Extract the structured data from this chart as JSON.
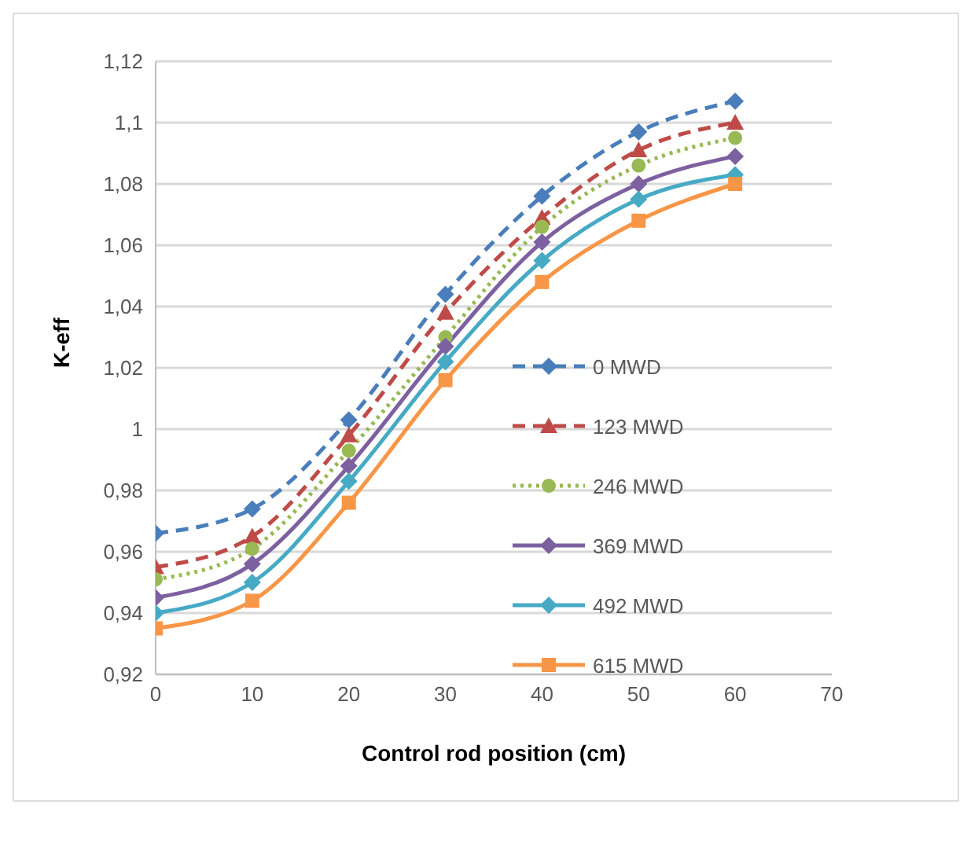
{
  "chart_data": {
    "type": "line",
    "xlabel": "Control rod position (cm)",
    "ylabel": "K-eff",
    "x": [
      0,
      10,
      20,
      30,
      40,
      50,
      60
    ],
    "xlim": [
      0,
      70
    ],
    "xticks": [
      0,
      10,
      20,
      30,
      40,
      50,
      60,
      70
    ],
    "ylim": [
      0.92,
      1.12
    ],
    "yticks": [
      {
        "value": 0.92,
        "label": "0,92"
      },
      {
        "value": 0.94,
        "label": "0,94"
      },
      {
        "value": 0.96,
        "label": "0,96"
      },
      {
        "value": 0.98,
        "label": "0,98"
      },
      1,
      {
        "value": 1.02,
        "label": "1,02"
      },
      {
        "value": 1.04,
        "label": "1,04"
      },
      {
        "value": 1.06,
        "label": "1,06"
      },
      {
        "value": 1.08,
        "label": "1,08"
      },
      {
        "value": 1.1,
        "label": "1,1"
      },
      {
        "value": 1.12,
        "label": "1,12"
      }
    ],
    "grid": "y",
    "legend": "right",
    "series": [
      {
        "name": "0 MWD",
        "color": "#4a7ebb",
        "line_style": "dashed",
        "marker": "diamond",
        "values": [
          0.966,
          0.974,
          1.003,
          1.044,
          1.076,
          1.097,
          1.107
        ]
      },
      {
        "name": "123 MWD",
        "color": "#be4b48",
        "line_style": "dashed",
        "marker": "triangle",
        "values": [
          0.955,
          0.965,
          0.998,
          1.038,
          1.069,
          1.091,
          1.1
        ]
      },
      {
        "name": "246 MWD",
        "color": "#98b954",
        "line_style": "dotted",
        "marker": "circle",
        "values": [
          0.951,
          0.961,
          0.993,
          1.03,
          1.066,
          1.086,
          1.095
        ]
      },
      {
        "name": "369 MWD",
        "color": "#7d60a0",
        "line_style": "solid",
        "marker": "diamond",
        "values": [
          0.945,
          0.956,
          0.988,
          1.027,
          1.061,
          1.08,
          1.089
        ]
      },
      {
        "name": "492 MWD",
        "color": "#46aac5",
        "line_style": "solid",
        "marker": "diamond",
        "values": [
          0.94,
          0.95,
          0.983,
          1.022,
          1.055,
          1.075,
          1.083
        ]
      },
      {
        "name": "615 MWD",
        "color": "#f79646",
        "line_style": "solid",
        "marker": "square",
        "values": [
          0.935,
          0.944,
          0.976,
          1.016,
          1.048,
          1.068,
          1.08
        ]
      }
    ]
  }
}
